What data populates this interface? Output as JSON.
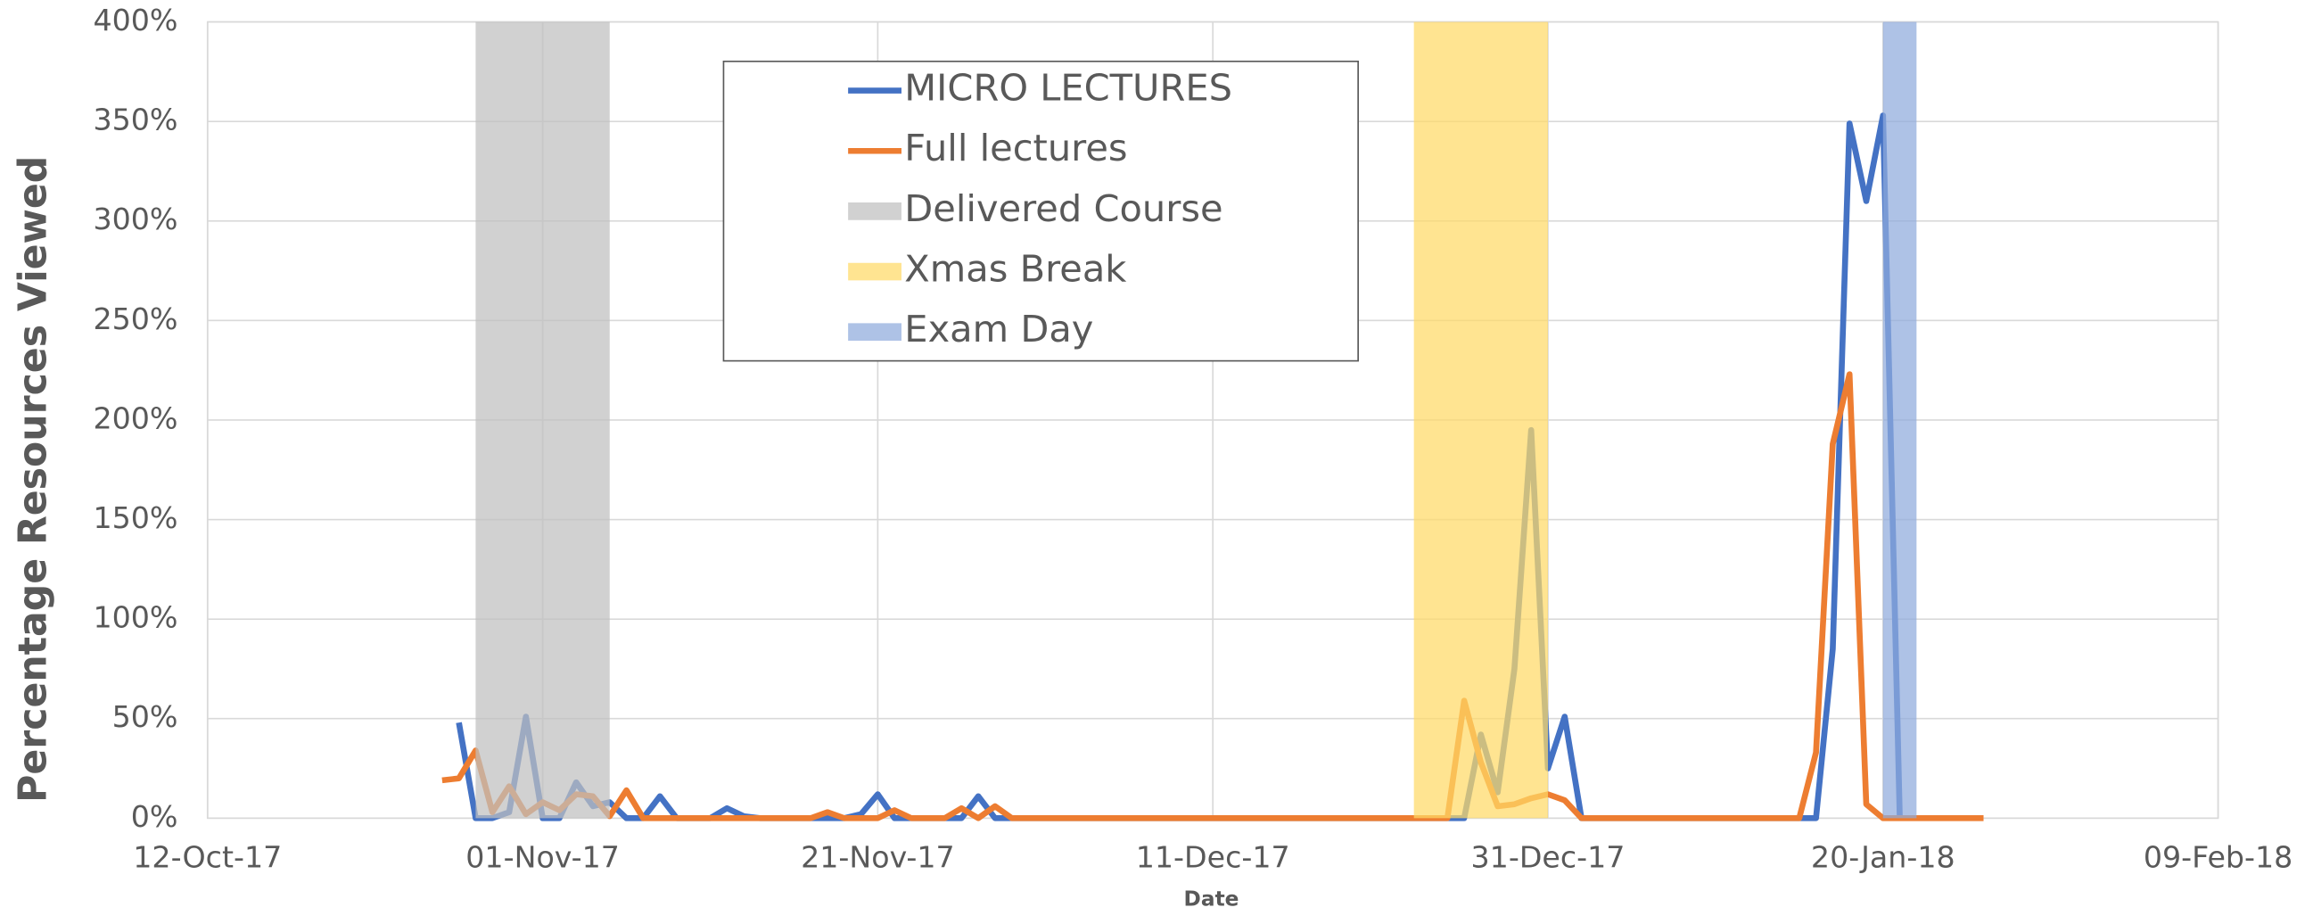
{
  "chart_data": {
    "type": "line",
    "xlabel": "Date",
    "ylabel": "Percentage Resources Viewed",
    "xlim": [
      "2017-10-12",
      "2018-02-09"
    ],
    "xticks": [
      {
        "value": "2017-10-12",
        "label": "12-Oct-17"
      },
      {
        "value": "2017-11-01",
        "label": "01-Nov-17"
      },
      {
        "value": "2017-11-21",
        "label": "21-Nov-17"
      },
      {
        "value": "2017-12-11",
        "label": "11-Dec-17"
      },
      {
        "value": "2017-12-31",
        "label": "31-Dec-17"
      },
      {
        "value": "2018-01-20",
        "label": "20-Jan-18"
      },
      {
        "value": "2018-02-09",
        "label": "09-Feb-18"
      }
    ],
    "ylim": [
      0,
      400
    ],
    "yticks": [
      {
        "value": 0,
        "label": "0%"
      },
      {
        "value": 50,
        "label": "50%"
      },
      {
        "value": 100,
        "label": "100%"
      },
      {
        "value": 150,
        "label": "150%"
      },
      {
        "value": 200,
        "label": "200%"
      },
      {
        "value": 250,
        "label": "250%"
      },
      {
        "value": 300,
        "label": "300%"
      },
      {
        "value": 350,
        "label": "350%"
      },
      {
        "value": 400,
        "label": "400%"
      }
    ],
    "grid": true,
    "x": [
      "2017-10-26",
      "2017-10-27",
      "2017-10-28",
      "2017-10-29",
      "2017-10-30",
      "2017-10-31",
      "2017-11-01",
      "2017-11-02",
      "2017-11-03",
      "2017-11-04",
      "2017-11-05",
      "2017-11-06",
      "2017-11-07",
      "2017-11-08",
      "2017-11-09",
      "2017-11-10",
      "2017-11-11",
      "2017-11-12",
      "2017-11-13",
      "2017-11-14",
      "2017-11-15",
      "2017-11-16",
      "2017-11-17",
      "2017-11-18",
      "2017-11-19",
      "2017-11-20",
      "2017-11-21",
      "2017-11-22",
      "2017-11-23",
      "2017-11-24",
      "2017-11-25",
      "2017-11-26",
      "2017-11-27",
      "2017-11-28",
      "2017-11-29",
      "2017-11-30",
      "2017-12-01",
      "2017-12-02",
      "2017-12-03",
      "2017-12-04",
      "2017-12-05",
      "2017-12-06",
      "2017-12-07",
      "2017-12-08",
      "2017-12-09",
      "2017-12-10",
      "2017-12-11",
      "2017-12-12",
      "2017-12-13",
      "2017-12-14",
      "2017-12-15",
      "2017-12-16",
      "2017-12-17",
      "2017-12-18",
      "2017-12-19",
      "2017-12-20",
      "2017-12-21",
      "2017-12-22",
      "2017-12-23",
      "2017-12-24",
      "2017-12-25",
      "2017-12-26",
      "2017-12-27",
      "2017-12-28",
      "2017-12-29",
      "2017-12-30",
      "2017-12-31",
      "2018-01-01",
      "2018-01-02",
      "2018-01-03",
      "2018-01-04",
      "2018-01-05",
      "2018-01-06",
      "2018-01-07",
      "2018-01-08",
      "2018-01-09",
      "2018-01-10",
      "2018-01-11",
      "2018-01-12",
      "2018-01-13",
      "2018-01-14",
      "2018-01-15",
      "2018-01-16",
      "2018-01-17",
      "2018-01-18",
      "2018-01-19",
      "2018-01-20",
      "2018-01-21",
      "2018-01-22",
      "2018-01-23",
      "2018-01-24",
      "2018-01-25",
      "2018-01-26"
    ],
    "series": [
      {
        "name": "MICRO LECTURES",
        "color": "#4472c4",
        "values": [
          null,
          48,
          0,
          0,
          3,
          51,
          0,
          0,
          18,
          6,
          8,
          0,
          0,
          11,
          0,
          0,
          0,
          5,
          1,
          0,
          0,
          0,
          0,
          0,
          0,
          2,
          12,
          0,
          0,
          0,
          0,
          0,
          11,
          0,
          0,
          0,
          0,
          0,
          0,
          0,
          0,
          0,
          0,
          0,
          0,
          0,
          0,
          0,
          0,
          0,
          0,
          0,
          0,
          0,
          0,
          0,
          0,
          0,
          0,
          0,
          0,
          0,
          42,
          13,
          75,
          195,
          25,
          51,
          0,
          0,
          0,
          0,
          0,
          0,
          0,
          0,
          0,
          0,
          0,
          0,
          0,
          0,
          0,
          85,
          349,
          310,
          353,
          0,
          null,
          null,
          null,
          null,
          null
        ]
      },
      {
        "name": "Full lectures",
        "color": "#ed7d31",
        "values": [
          19,
          20,
          34,
          3,
          16,
          2,
          8,
          4,
          12,
          11,
          1,
          14,
          0,
          0,
          0,
          0,
          0,
          0,
          0,
          0,
          0,
          0,
          0,
          3,
          0,
          0,
          0,
          4,
          0,
          0,
          0,
          5,
          0,
          6,
          0,
          0,
          0,
          0,
          0,
          0,
          0,
          0,
          0,
          0,
          0,
          0,
          0,
          0,
          0,
          0,
          0,
          0,
          0,
          0,
          0,
          0,
          0,
          0,
          0,
          0,
          0,
          59,
          28,
          6,
          7,
          10,
          12,
          9,
          0,
          0,
          0,
          0,
          0,
          0,
          0,
          0,
          0,
          0,
          0,
          0,
          0,
          0,
          33,
          188,
          223,
          7,
          0,
          0,
          0,
          0,
          0,
          0,
          0
        ]
      },
      {
        "name": "Delivered Course",
        "color": "#bfbfbf",
        "type": "band",
        "x": [
          "2017-10-28",
          "2017-11-05"
        ]
      },
      {
        "name": "Xmas Break",
        "color": "#ffd966",
        "type": "band",
        "x": [
          "2017-12-23",
          "2017-12-31"
        ]
      },
      {
        "name": "Exam Day",
        "color": "#8faadc",
        "type": "band",
        "x": [
          "2018-01-20",
          "2018-01-22"
        ]
      }
    ]
  }
}
